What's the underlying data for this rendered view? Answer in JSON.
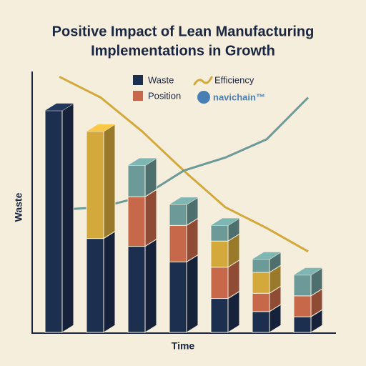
{
  "chart_data": {
    "type": "bar",
    "title": [
      "Positive Impact of Lean Manufacturing",
      "Implementations in Growth"
    ],
    "xlabel": "Time",
    "ylabel": "Waste",
    "brand": "navichain™",
    "categories": [
      null,
      null,
      null,
      null,
      null,
      null,
      null
    ],
    "ylim": [
      0,
      100
    ],
    "stacked": true,
    "series": [
      {
        "name": "Waste",
        "color": "#1d2f4f",
        "values": [
          85,
          36,
          33,
          27,
          13,
          8,
          6
        ]
      },
      {
        "name": "Position",
        "color": "#c8684a",
        "values": [
          null,
          null,
          19,
          14,
          12,
          7,
          8
        ]
      },
      {
        "color": "#d4a93c",
        "values": [
          null,
          41,
          null,
          null,
          10,
          8,
          null
        ]
      },
      {
        "color": "#6b9a98",
        "values": [
          null,
          null,
          12,
          8,
          6,
          5,
          8
        ]
      }
    ],
    "lines": [
      {
        "name": "Efficiency",
        "color": "#d4a93c",
        "values": [
          98,
          90,
          77,
          62,
          48,
          40,
          31
        ]
      },
      {
        "color": "#6b9a98",
        "values": [
          47,
          48,
          52,
          62,
          67,
          74,
          90
        ]
      }
    ]
  }
}
